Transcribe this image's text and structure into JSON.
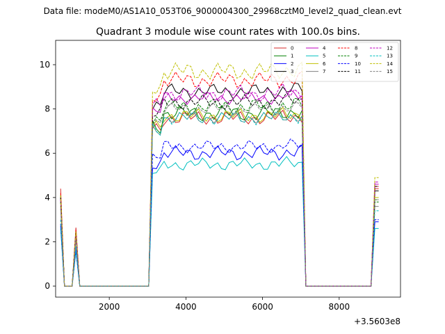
{
  "chart_data": {
    "type": "line",
    "suptitle": "Data file: modeM0/AS1A10_053T06_9000004300_29968cztM0_level2_quad_clean.evt",
    "title": "Quadrant 3 module wise count rates with 100.0s bins.",
    "xlabel": "",
    "ylabel": "",
    "x_offset_label": "+3.5603e8",
    "xlim": [
      600,
      9600
    ],
    "ylim": [
      -0.5,
      11.1
    ],
    "x_ticks": [
      2000,
      4000,
      6000,
      8000
    ],
    "x_tick_labels": [
      "2000",
      "4000",
      "6000",
      "8000"
    ],
    "y_ticks": [
      0,
      2,
      4,
      6,
      8,
      10
    ],
    "y_tick_labels": [
      "0",
      "2",
      "4",
      "6",
      "8",
      "10"
    ],
    "legend_position": "top-right",
    "legend_columns": 4,
    "series": [
      {
        "name": "0",
        "color": "#d62728",
        "dash": "solid",
        "start": 4.4,
        "high": 7.6,
        "amp": 0.35,
        "tail": 4.4,
        "seed": 1
      },
      {
        "name": "1",
        "color": "#008000",
        "dash": "solid",
        "start": 4.1,
        "high": 7.8,
        "amp": 0.4,
        "tail": 3.9,
        "seed": 2
      },
      {
        "name": "2",
        "color": "#0000ff",
        "dash": "solid",
        "start": 2.7,
        "high": 6.0,
        "amp": 0.35,
        "tail": 2.9,
        "seed": 3
      },
      {
        "name": "3",
        "color": "#000000",
        "dash": "solid",
        "start": 4.0,
        "high": 8.8,
        "amp": 0.35,
        "tail": 4.3,
        "seed": 4
      },
      {
        "name": "4",
        "color": "#bf00bf",
        "dash": "solid",
        "start": 3.9,
        "high": 8.5,
        "amp": 0.3,
        "tail": 4.6,
        "seed": 5
      },
      {
        "name": "5",
        "color": "#00bfbf",
        "dash": "solid",
        "start": 2.6,
        "high": 5.5,
        "amp": 0.3,
        "tail": 2.6,
        "seed": 6
      },
      {
        "name": "6",
        "color": "#bfbf00",
        "dash": "solid",
        "start": 3.8,
        "high": 7.7,
        "amp": 0.35,
        "tail": 4.0,
        "seed": 7
      },
      {
        "name": "7",
        "color": "#808080",
        "dash": "solid",
        "start": 3.6,
        "high": 7.6,
        "amp": 0.3,
        "tail": 3.6,
        "seed": 8
      },
      {
        "name": "8",
        "color": "#ff0000",
        "dash": "dashed",
        "start": 4.2,
        "high": 9.3,
        "amp": 0.4,
        "tail": 4.5,
        "seed": 9
      },
      {
        "name": "9",
        "color": "#008000",
        "dash": "dashed",
        "start": 3.8,
        "high": 8.1,
        "amp": 0.4,
        "tail": 3.8,
        "seed": 10
      },
      {
        "name": "10",
        "color": "#0000ff",
        "dash": "dashed",
        "start": 2.8,
        "high": 6.3,
        "amp": 0.3,
        "tail": 3.0,
        "seed": 11
      },
      {
        "name": "11",
        "color": "#000000",
        "dash": "dashed",
        "start": 4.0,
        "high": 8.3,
        "amp": 0.35,
        "tail": 4.5,
        "seed": 12
      },
      {
        "name": "12",
        "color": "#bf00bf",
        "dash": "dashed",
        "start": 3.9,
        "high": 8.7,
        "amp": 0.4,
        "tail": 4.7,
        "seed": 13
      },
      {
        "name": "13",
        "color": "#00bfbf",
        "dash": "dashed",
        "start": 3.0,
        "high": 7.6,
        "amp": 0.35,
        "tail": 3.4,
        "seed": 14
      },
      {
        "name": "14",
        "color": "#bfbf00",
        "dash": "dashed",
        "start": 4.1,
        "high": 9.7,
        "amp": 0.45,
        "tail": 4.9,
        "seed": 15
      },
      {
        "name": "15",
        "color": "#808080",
        "dash": "dashed",
        "start": 3.5,
        "high": 8.0,
        "amp": 0.3,
        "tail": 3.9,
        "seed": 16
      }
    ]
  }
}
